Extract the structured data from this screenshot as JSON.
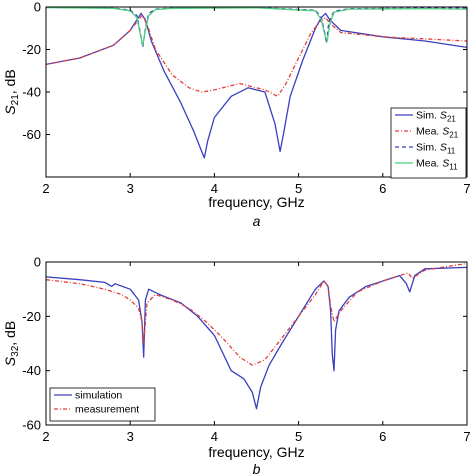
{
  "chart_data": [
    {
      "type": "line",
      "panel_label": "a",
      "xlabel": "frequency, GHz",
      "ylabel": {
        "main": "S",
        "sub": "21",
        "suffix": ", dB"
      },
      "xlim": [
        2,
        7
      ],
      "ylim": [
        -80,
        0
      ],
      "xticks": [
        2,
        3,
        4,
        5,
        6,
        7
      ],
      "yticks": [
        0,
        -20,
        -40,
        -60
      ],
      "grid": false,
      "legend_position": "bottom-right",
      "series": [
        {
          "name": "Sim. S21",
          "legend_main": "Sim. ",
          "legend_sub": "21",
          "color": "#3a3fbf",
          "dash": "",
          "x": [
            2.0,
            2.4,
            2.8,
            3.0,
            3.08,
            3.13,
            3.18,
            3.25,
            3.4,
            3.6,
            3.75,
            3.84,
            3.88,
            3.92,
            4.0,
            4.2,
            4.4,
            4.6,
            4.72,
            4.78,
            4.82,
            4.9,
            5.05,
            5.2,
            5.27,
            5.32,
            5.37,
            5.5,
            6.0,
            6.5,
            7.0
          ],
          "y": [
            -27,
            -24,
            -18,
            -11,
            -6,
            -3,
            -6,
            -16,
            -30,
            -45,
            -58,
            -67,
            -71,
            -63,
            -52,
            -42,
            -38,
            -40,
            -55,
            -68,
            -60,
            -42,
            -25,
            -10,
            -5,
            -3,
            -6,
            -11,
            -14,
            -16,
            -19
          ]
        },
        {
          "name": "Mea. S21",
          "legend_main": "Mea. ",
          "legend_sub": "21",
          "color": "#e0403a",
          "dash": "4,2,1,2",
          "x": [
            2.0,
            2.4,
            2.8,
            3.0,
            3.08,
            3.14,
            3.2,
            3.3,
            3.5,
            3.7,
            3.85,
            4.0,
            4.3,
            4.6,
            4.75,
            4.85,
            5.0,
            5.15,
            5.25,
            5.32,
            5.38,
            5.5,
            6.0,
            6.5,
            7.0
          ],
          "y": [
            -27,
            -24,
            -18,
            -11,
            -7,
            -4,
            -8,
            -20,
            -32,
            -38,
            -40,
            -39,
            -36,
            -39,
            -42,
            -36,
            -24,
            -12,
            -7,
            -5,
            -8,
            -12,
            -14,
            -15,
            -16
          ]
        },
        {
          "name": "Sim. S11",
          "legend_main": "Sim. ",
          "legend_sub": "11",
          "color": "#3a3fbf",
          "dash": "4,3",
          "x": [
            2.0,
            2.8,
            3.0,
            3.08,
            3.12,
            3.15,
            3.18,
            3.22,
            3.3,
            3.5,
            4.5,
            5.2,
            5.27,
            5.31,
            5.33,
            5.36,
            5.42,
            5.6,
            6.5,
            7.0
          ],
          "y": [
            -0.2,
            -0.5,
            -1.5,
            -4,
            -12,
            -19,
            -10,
            -3,
            -1,
            -0.5,
            -0.3,
            -1.5,
            -5,
            -12,
            -17,
            -7,
            -2,
            -0.8,
            -0.5,
            -0.5
          ]
        },
        {
          "name": "Mea. S11",
          "legend_main": "Mea. ",
          "legend_sub": "11",
          "color": "#4fd07f",
          "dash": "",
          "x": [
            2.0,
            2.8,
            3.0,
            3.08,
            3.12,
            3.15,
            3.18,
            3.22,
            3.3,
            3.5,
            4.5,
            5.2,
            5.27,
            5.31,
            5.34,
            5.37,
            5.42,
            5.6,
            6.5,
            7.0
          ],
          "y": [
            -0.3,
            -0.6,
            -1.8,
            -5,
            -13,
            -18,
            -11,
            -4,
            -1.2,
            -0.6,
            -0.4,
            -1.8,
            -6,
            -13,
            -16,
            -8,
            -2.5,
            -1,
            -0.8,
            -1
          ]
        }
      ]
    },
    {
      "type": "line",
      "panel_label": "b",
      "xlabel": "frequency, GHz",
      "ylabel": {
        "main": "S",
        "sub": "32",
        "suffix": ", dB"
      },
      "xlim": [
        2,
        7
      ],
      "ylim": [
        -60,
        0
      ],
      "xticks": [
        2,
        3,
        4,
        5,
        6,
        7
      ],
      "yticks": [
        0,
        -20,
        -40,
        -60
      ],
      "grid": false,
      "legend_position": "bottom-left",
      "series": [
        {
          "name": "simulation",
          "legend_main": "simulation",
          "legend_sub": "",
          "color": "#3a3fbf",
          "dash": "",
          "x": [
            2.0,
            2.4,
            2.7,
            2.78,
            2.82,
            3.0,
            3.1,
            3.14,
            3.16,
            3.18,
            3.22,
            3.35,
            3.6,
            3.8,
            4.0,
            4.2,
            4.35,
            4.45,
            4.5,
            4.55,
            4.65,
            4.8,
            5.0,
            5.2,
            5.3,
            5.35,
            5.38,
            5.4,
            5.42,
            5.44,
            5.48,
            5.6,
            5.8,
            6.0,
            6.2,
            6.28,
            6.32,
            6.38,
            6.5,
            7.0
          ],
          "y": [
            -5.5,
            -6.5,
            -7.5,
            -9,
            -8,
            -10,
            -14,
            -22,
            -35,
            -14,
            -10,
            -12,
            -15,
            -20,
            -27,
            -40,
            -43,
            -48,
            -54,
            -46,
            -38,
            -30,
            -20,
            -10,
            -7,
            -9,
            -18,
            -34,
            -40,
            -25,
            -18,
            -13,
            -9,
            -7,
            -5,
            -8,
            -11,
            -5,
            -2.5,
            -2
          ]
        },
        {
          "name": "measurement",
          "legend_main": "measurement",
          "legend_sub": "",
          "color": "#e0403a",
          "dash": "4,2,1,2",
          "x": [
            2.0,
            2.4,
            2.7,
            2.9,
            3.0,
            3.1,
            3.14,
            3.16,
            3.2,
            3.3,
            3.5,
            3.7,
            3.9,
            4.1,
            4.3,
            4.45,
            4.6,
            4.8,
            5.0,
            5.2,
            5.3,
            5.35,
            5.38,
            5.42,
            5.5,
            5.7,
            6.0,
            6.2,
            6.3,
            6.35,
            6.5,
            7.0
          ],
          "y": [
            -6.5,
            -8,
            -10,
            -12,
            -14,
            -17,
            -22,
            -30,
            -15,
            -12,
            -14,
            -17,
            -22,
            -28,
            -35,
            -38,
            -36,
            -28,
            -20,
            -12,
            -7,
            -9,
            -16,
            -22,
            -18,
            -11,
            -7,
            -5,
            -4,
            -6,
            -3,
            -0.5
          ]
        }
      ]
    }
  ]
}
